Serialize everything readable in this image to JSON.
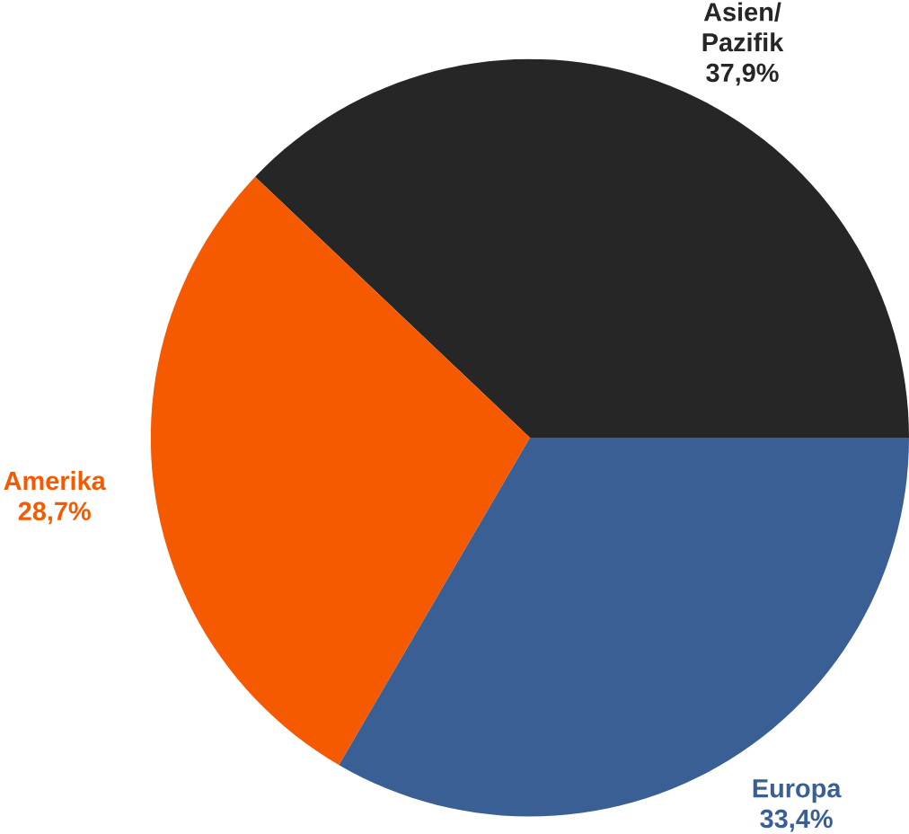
{
  "chart_data": {
    "type": "pie",
    "categories": [
      "Asien/ Pazifik",
      "Amerika",
      "Europa"
    ],
    "values": [
      37.9,
      28.7,
      33.4
    ],
    "value_labels": [
      "37,9%",
      "28,7%",
      "33,4%"
    ],
    "colors": [
      "#262626",
      "#f55a00",
      "#3a5f94"
    ]
  }
}
